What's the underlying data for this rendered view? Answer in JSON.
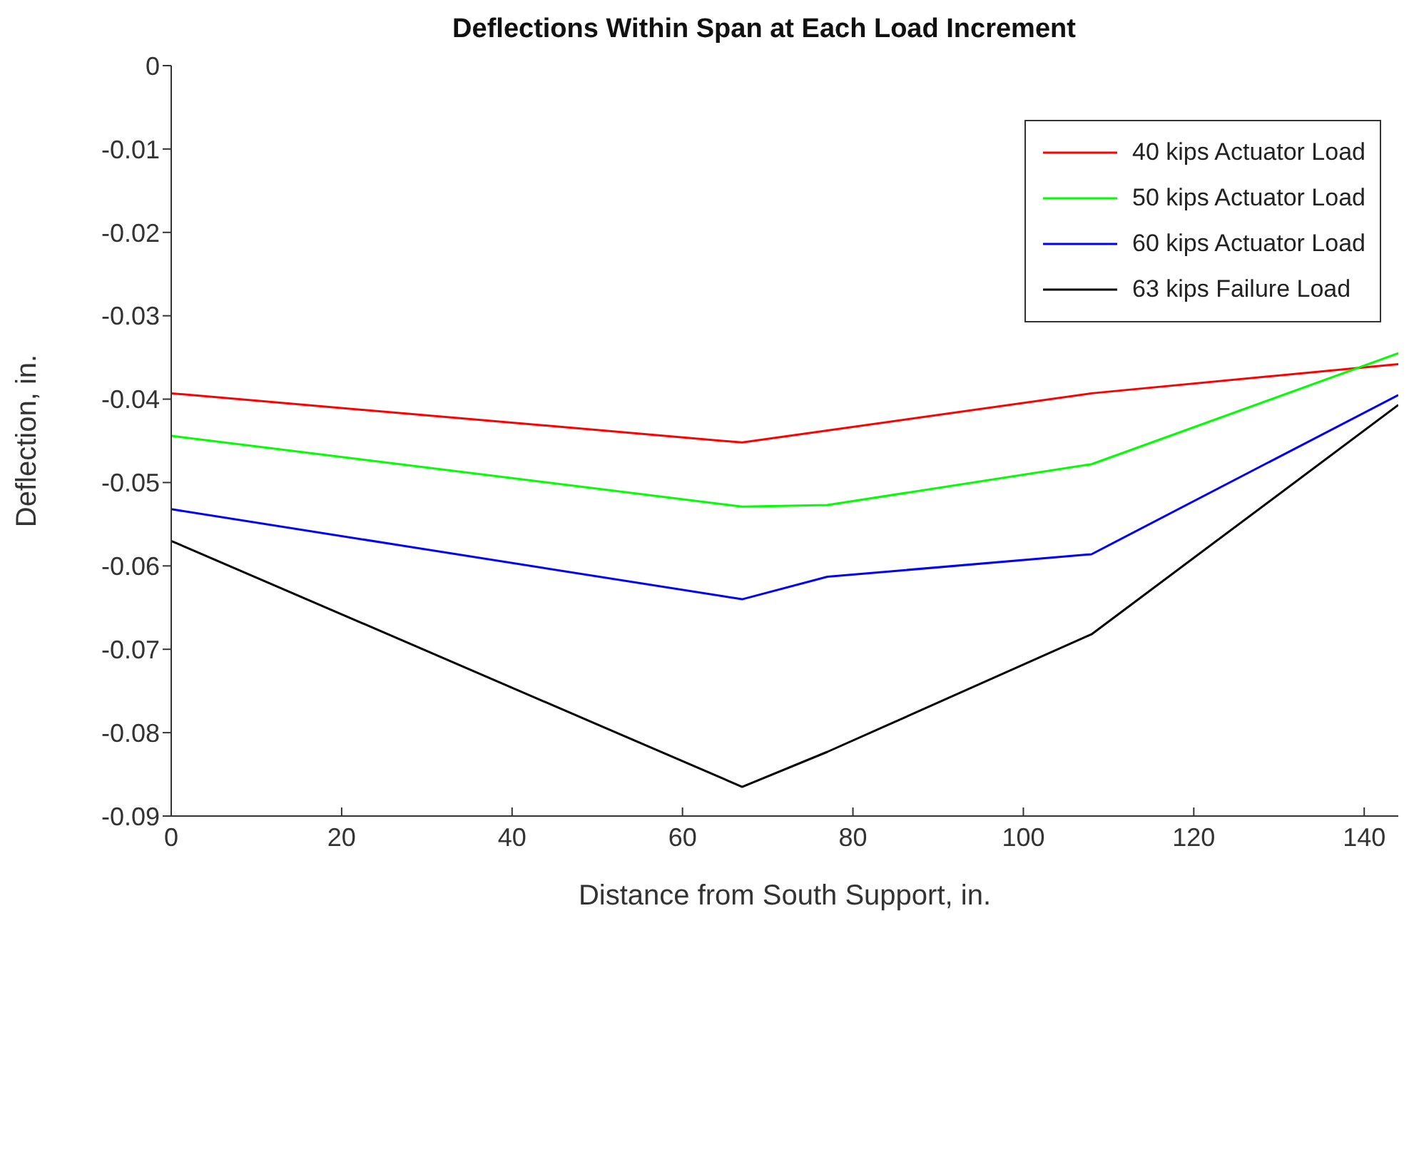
{
  "chart_data": {
    "type": "line",
    "title": "Deflections Within Span at Each Load Increment",
    "xlabel": "Distance from South Support, in.",
    "ylabel": "Deflection, in.",
    "xlim": [
      0,
      144
    ],
    "xticks": [
      0,
      20,
      40,
      60,
      80,
      100,
      120,
      140
    ],
    "ylim": [
      -0.09,
      0
    ],
    "yticks": [
      -0.09,
      -0.08,
      -0.07,
      -0.06,
      -0.05,
      -0.04,
      -0.03,
      -0.02,
      -0.01,
      0
    ],
    "grid": false,
    "legend": "top right",
    "marker": "none",
    "line_style": "solid",
    "series": [
      {
        "name": "40 kips Actuator Load",
        "color": "#ff0000",
        "x": [
          0,
          67,
          108,
          144
        ],
        "values": [
          -0.0393,
          -0.0452,
          -0.0393,
          -0.0358
        ]
      },
      {
        "name": "50 kips Actuator Load",
        "color": "#00ff00",
        "x": [
          0,
          67,
          77,
          108,
          144
        ],
        "values": [
          -0.0444,
          -0.0529,
          -0.0527,
          -0.0478,
          -0.0345
        ]
      },
      {
        "name": "60 kips Actuator Load",
        "color": "#0000ff",
        "x": [
          0,
          67,
          77,
          108,
          144
        ],
        "values": [
          -0.0532,
          -0.064,
          -0.0613,
          -0.0586,
          -0.0395
        ]
      },
      {
        "name": "63 kips Failure Load",
        "color": "#000000",
        "x": [
          0,
          67,
          77,
          108,
          144
        ],
        "values": [
          -0.057,
          -0.0865,
          -0.0823,
          -0.0682,
          -0.0407
        ]
      }
    ]
  }
}
